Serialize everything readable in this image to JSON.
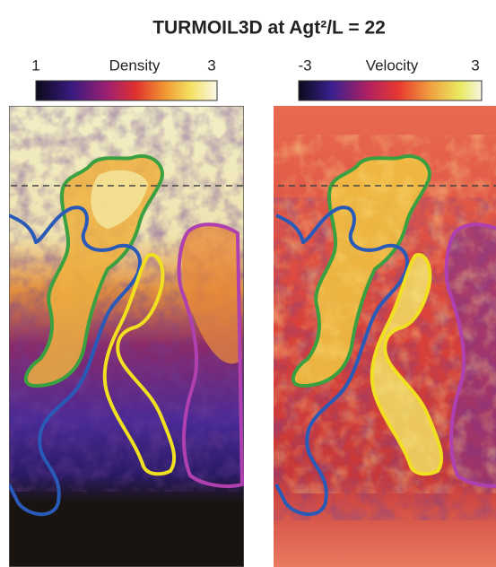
{
  "title": "TURMOIL3D at Agt²/L = 22",
  "panels": [
    {
      "colorbar": {
        "label": "Density",
        "min": 1,
        "max": 3
      }
    },
    {
      "colorbar": {
        "label": "Velocity",
        "min": -3,
        "max": 3
      }
    }
  ]
}
